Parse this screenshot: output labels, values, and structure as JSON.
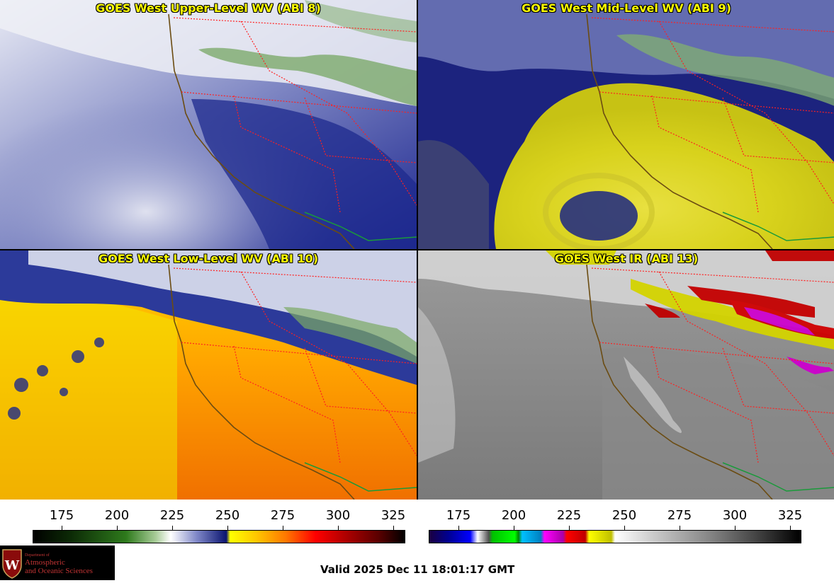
{
  "panels": [
    {
      "title": "GOES West Upper-Level WV (ABI 8)",
      "product": "upper-level-water-vapor"
    },
    {
      "title": "GOES West Mid-Level WV (ABI 9)",
      "product": "mid-level-water-vapor"
    },
    {
      "title": "GOES West Low-Level WV (ABI 10)",
      "product": "low-level-water-vapor"
    },
    {
      "title": "GOES West IR (ABI 13)",
      "product": "infrared"
    }
  ],
  "colorbar_left": {
    "ticks": [
      "175",
      "200",
      "225",
      "250",
      "275",
      "300",
      "325"
    ],
    "type": "water-vapor"
  },
  "colorbar_right": {
    "ticks": [
      "175",
      "200",
      "225",
      "250",
      "275",
      "300",
      "325"
    ],
    "type": "infrared"
  },
  "logo": {
    "line1": "Department of",
    "line2": "Atmospheric",
    "line3": "and Oceanic Sciences",
    "emblem": "W"
  },
  "valid_time": "Valid 2025 Dec 11 18:01:17 GMT",
  "colors": {
    "title_text": "#ffff00",
    "state_borders": "#ff2020",
    "coastline": "#6b4c12",
    "mexico_border": "#1a9a3a"
  }
}
